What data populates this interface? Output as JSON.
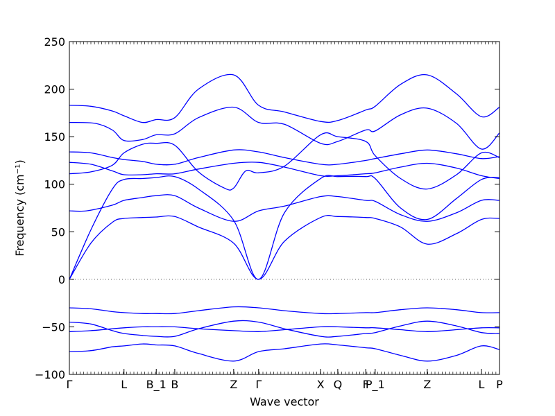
{
  "chart_data": {
    "type": "line",
    "title": "",
    "xlabel": "Wave vector",
    "ylabel": "Frequency (cm⁻¹)",
    "ylim": [
      -100,
      250
    ],
    "yticks": [
      -100,
      -50,
      0,
      50,
      100,
      150,
      200,
      250
    ],
    "grid": false,
    "zero_line": {
      "style": "dotted",
      "color": "#555555"
    },
    "xlim": [
      0,
      1
    ],
    "x_tick_labels": [
      {
        "x": 0.0,
        "label": "Γ"
      },
      {
        "x": 0.127,
        "label": "L"
      },
      {
        "x": 0.202,
        "label": "B_1"
      },
      {
        "x": 0.245,
        "label": "B"
      },
      {
        "x": 0.382,
        "label": "Z"
      },
      {
        "x": 0.44,
        "label": "Γ"
      },
      {
        "x": 0.584,
        "label": "X"
      },
      {
        "x": 0.624,
        "label": "Q"
      },
      {
        "x": 0.689,
        "label": "F"
      },
      {
        "x": 0.711,
        "label": "P_1"
      },
      {
        "x": 0.832,
        "label": "Z"
      },
      {
        "x": 0.958,
        "label": "L"
      },
      {
        "x": 1.0,
        "label": "P"
      }
    ],
    "color": "#0000ff",
    "series": [
      {
        "x": [
          0,
          0.05,
          0.1,
          0.127,
          0.17,
          0.202,
          0.245,
          0.3,
          0.382,
          0.44,
          0.5,
          0.584,
          0.624,
          0.689,
          0.711,
          0.77,
          0.832,
          0.9,
          0.958,
          1.0
        ],
        "values": [
          183,
          182,
          177,
          172,
          165,
          168,
          170,
          200,
          215,
          183,
          176,
          166,
          167,
          178,
          182,
          205,
          215,
          195,
          171,
          181
        ]
      },
      {
        "x": [
          0,
          0.06,
          0.1,
          0.127,
          0.17,
          0.202,
          0.245,
          0.3,
          0.382,
          0.44,
          0.5,
          0.584,
          0.624,
          0.689,
          0.711,
          0.77,
          0.832,
          0.9,
          0.958,
          1.0
        ],
        "values": [
          165,
          164,
          157,
          146,
          147,
          152,
          153,
          170,
          181,
          165,
          163,
          143,
          145,
          157,
          156,
          173,
          180,
          164,
          137,
          154
        ]
      },
      {
        "x": [
          0,
          0.05,
          0.1,
          0.127,
          0.17,
          0.202,
          0.245,
          0.3,
          0.382,
          0.44,
          0.5,
          0.584,
          0.624,
          0.689,
          0.711,
          0.77,
          0.832,
          0.9,
          0.958,
          1.0
        ],
        "values": [
          134,
          133,
          128,
          126,
          124,
          121,
          121,
          128,
          136,
          134,
          128,
          121,
          121,
          125,
          127,
          132,
          136,
          132,
          127,
          129
        ]
      },
      {
        "x": [
          0,
          0.05,
          0.1,
          0.127,
          0.17,
          0.202,
          0.245,
          0.3,
          0.382,
          0.44,
          0.5,
          0.584,
          0.624,
          0.689,
          0.711,
          0.77,
          0.832,
          0.9,
          0.958,
          1.0
        ],
        "values": [
          123,
          121,
          114,
          110,
          110,
          111,
          111,
          116,
          122,
          123,
          118,
          109,
          109,
          111,
          112,
          118,
          122,
          117,
          109,
          106
        ]
      },
      {
        "x": [
          0,
          0.05,
          0.1,
          0.127,
          0.17,
          0.202,
          0.245,
          0.3,
          0.36,
          0.382,
          0.41,
          0.44,
          0.5,
          0.584,
          0.624,
          0.689,
          0.711,
          0.77,
          0.832,
          0.9,
          0.958,
          1.0
        ],
        "values": [
          111,
          113,
          120,
          133,
          142,
          143,
          141,
          113,
          96,
          96,
          114,
          112,
          119,
          152,
          150,
          145,
          130,
          106,
          95,
          110,
          133,
          128
        ]
      },
      {
        "x": [
          0,
          0.04,
          0.1,
          0.127,
          0.17,
          0.202,
          0.245,
          0.3,
          0.382,
          0.44,
          0.5,
          0.584,
          0.624,
          0.689,
          0.711,
          0.77,
          0.832,
          0.9,
          0.958,
          1.0
        ],
        "values": [
          72,
          72,
          78,
          83,
          86,
          88,
          88,
          75,
          61,
          72,
          77,
          87,
          87,
          83,
          82,
          68,
          61,
          70,
          83,
          83
        ]
      },
      {
        "x": [
          0,
          0.05,
          0.1,
          0.127,
          0.17,
          0.202,
          0.245,
          0.3,
          0.382,
          0.44,
          0.5,
          0.584,
          0.624,
          0.689,
          0.711,
          0.77,
          0.832,
          0.9,
          0.958,
          1.0
        ],
        "values": [
          0,
          52,
          95,
          105,
          106,
          107,
          108,
          95,
          62,
          0,
          70,
          106,
          108,
          108,
          106,
          75,
          63,
          85,
          105,
          107
        ]
      },
      {
        "x": [
          0,
          0.05,
          0.1,
          0.127,
          0.17,
          0.202,
          0.245,
          0.3,
          0.382,
          0.44,
          0.5,
          0.584,
          0.624,
          0.689,
          0.711,
          0.77,
          0.832,
          0.9,
          0.958,
          1.0
        ],
        "values": [
          0,
          38,
          60,
          64,
          65,
          65.5,
          66,
          55,
          38,
          0,
          40,
          65,
          66,
          65,
          64,
          55,
          37,
          48,
          63,
          64
        ]
      },
      {
        "x": [
          0,
          0.05,
          0.1,
          0.127,
          0.17,
          0.202,
          0.245,
          0.3,
          0.382,
          0.44,
          0.5,
          0.584,
          0.624,
          0.689,
          0.711,
          0.77,
          0.832,
          0.9,
          0.958,
          1.0
        ],
        "values": [
          -30,
          -31,
          -34,
          -35,
          -36,
          -36,
          -36,
          -33,
          -29,
          -30,
          -33,
          -36,
          -36,
          -35,
          -35,
          -32,
          -30,
          -32,
          -35,
          -35
        ]
      },
      {
        "x": [
          0,
          0.05,
          0.1,
          0.127,
          0.17,
          0.202,
          0.245,
          0.3,
          0.382,
          0.44,
          0.5,
          0.584,
          0.624,
          0.689,
          0.711,
          0.77,
          0.832,
          0.9,
          0.958,
          1.0
        ],
        "values": [
          -45,
          -47,
          -54,
          -57,
          -59,
          -60,
          -60,
          -52,
          -44,
          -45,
          -52,
          -60,
          -60,
          -57,
          -56,
          -49,
          -44,
          -49,
          -56,
          -57
        ]
      },
      {
        "x": [
          0,
          0.05,
          0.1,
          0.127,
          0.17,
          0.202,
          0.245,
          0.3,
          0.382,
          0.44,
          0.5,
          0.584,
          0.624,
          0.689,
          0.711,
          0.77,
          0.832,
          0.9,
          0.958,
          1.0
        ],
        "values": [
          -55,
          -54,
          -52,
          -51,
          -50,
          -50,
          -50,
          -52,
          -54,
          -55,
          -53,
          -50,
          -50,
          -51,
          -51,
          -53,
          -55,
          -53,
          -51,
          -51
        ]
      },
      {
        "x": [
          0,
          0.05,
          0.1,
          0.127,
          0.17,
          0.202,
          0.245,
          0.3,
          0.382,
          0.44,
          0.5,
          0.584,
          0.624,
          0.689,
          0.711,
          0.77,
          0.832,
          0.9,
          0.958,
          1.0
        ],
        "values": [
          -76,
          -75,
          -71,
          -70,
          -68,
          -69,
          -70,
          -78,
          -86,
          -76,
          -73,
          -68,
          -69,
          -72,
          -73,
          -80,
          -86,
          -80,
          -70,
          -74
        ]
      }
    ]
  }
}
